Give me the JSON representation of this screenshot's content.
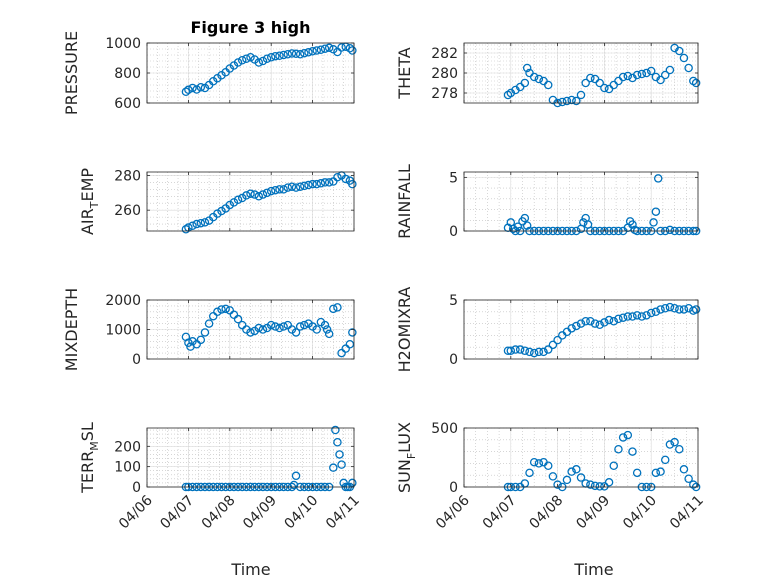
{
  "colors": {
    "marker": "#0072BD",
    "axis": "#262626"
  },
  "chart_data": [
    {
      "type": "scatter",
      "title": "Figure 3 high",
      "ylabel": "PRESSURE",
      "ylim": [
        600,
        1000
      ],
      "yticks": [
        "600",
        "800",
        "1000"
      ],
      "ytickvals": [
        600,
        800,
        1000
      ],
      "xlim": [
        0,
        5
      ],
      "xticks": [
        "04/06",
        "04/07",
        "04/08",
        "04/09",
        "04/10",
        "04/11"
      ],
      "show_xticks": false,
      "series": [
        {
          "x": [
            0.94,
            1.0,
            1.1,
            1.2,
            1.3,
            1.4,
            1.5,
            1.6,
            1.7,
            1.8,
            1.9,
            2.0,
            2.1,
            2.2,
            2.3,
            2.4,
            2.5,
            2.6,
            2.7,
            2.8,
            2.9,
            3.0,
            3.1,
            3.2,
            3.3,
            3.4,
            3.5,
            3.6,
            3.7,
            3.8,
            3.9,
            4.0,
            4.1,
            4.2,
            4.3,
            4.4,
            4.5,
            4.6,
            4.7,
            4.8,
            4.9,
            4.96
          ],
          "y": [
            675,
            688,
            700,
            690,
            705,
            700,
            720,
            745,
            765,
            785,
            805,
            830,
            850,
            870,
            885,
            895,
            905,
            890,
            870,
            880,
            895,
            905,
            912,
            915,
            920,
            925,
            930,
            928,
            925,
            932,
            938,
            945,
            950,
            955,
            962,
            968,
            958,
            940,
            970,
            975,
            965,
            950
          ]
        }
      ]
    },
    {
      "type": "scatter",
      "title": "",
      "ylabel": "THETA",
      "ylim": [
        277,
        283
      ],
      "yticks": [
        "278",
        "280",
        "282"
      ],
      "ytickvals": [
        278,
        280,
        282
      ],
      "xlim": [
        0,
        5
      ],
      "xticks": [
        "04/06",
        "04/07",
        "04/08",
        "04/09",
        "04/10",
        "04/11"
      ],
      "show_xticks": false,
      "series": [
        {
          "x": [
            0.94,
            1.0,
            1.1,
            1.2,
            1.3,
            1.35,
            1.4,
            1.5,
            1.6,
            1.7,
            1.8,
            1.9,
            2.0,
            2.1,
            2.2,
            2.3,
            2.4,
            2.5,
            2.6,
            2.7,
            2.8,
            2.9,
            3.0,
            3.1,
            3.2,
            3.3,
            3.4,
            3.5,
            3.6,
            3.7,
            3.8,
            3.9,
            4.0,
            4.1,
            4.2,
            4.3,
            4.4,
            4.5,
            4.6,
            4.7,
            4.8,
            4.9,
            4.96
          ],
          "y": [
            277.8,
            278.0,
            278.3,
            278.6,
            279.0,
            280.5,
            280.0,
            279.6,
            279.4,
            279.2,
            278.8,
            277.3,
            277.0,
            277.1,
            277.2,
            277.3,
            277.2,
            277.8,
            279.0,
            279.5,
            279.4,
            279.0,
            278.5,
            278.4,
            278.8,
            279.2,
            279.6,
            279.7,
            279.5,
            279.8,
            279.9,
            280.0,
            280.2,
            279.6,
            279.3,
            279.8,
            280.3,
            282.5,
            282.2,
            281.5,
            280.5,
            279.2,
            279.0
          ]
        }
      ]
    },
    {
      "type": "scatter",
      "title": "",
      "ylabel": "AIR_TEMP",
      "ylim": [
        248,
        282
      ],
      "yticks": [
        "260",
        "280"
      ],
      "ytickvals": [
        260,
        280
      ],
      "xlim": [
        0,
        5
      ],
      "xticks": [
        "04/06",
        "04/07",
        "04/08",
        "04/09",
        "04/10",
        "04/11"
      ],
      "show_xticks": false,
      "series": [
        {
          "x": [
            0.94,
            1.0,
            1.1,
            1.2,
            1.3,
            1.4,
            1.5,
            1.6,
            1.7,
            1.8,
            1.9,
            2.0,
            2.1,
            2.2,
            2.3,
            2.4,
            2.5,
            2.6,
            2.7,
            2.8,
            2.9,
            3.0,
            3.1,
            3.2,
            3.3,
            3.4,
            3.5,
            3.6,
            3.7,
            3.8,
            3.9,
            4.0,
            4.1,
            4.2,
            4.3,
            4.4,
            4.5,
            4.6,
            4.7,
            4.8,
            4.9,
            4.96
          ],
          "y": [
            249,
            250,
            251,
            252,
            252.5,
            253,
            254,
            256,
            258,
            259.5,
            261,
            263,
            264.5,
            266,
            267,
            268.5,
            269.5,
            269,
            268,
            269,
            270,
            271,
            271.5,
            272,
            272,
            273,
            273.5,
            273,
            273.5,
            274,
            274.5,
            275,
            275,
            275.5,
            276,
            276,
            276.5,
            279,
            280,
            278,
            277,
            275
          ]
        }
      ]
    },
    {
      "type": "scatter",
      "title": "",
      "ylabel": "RAINFALL",
      "ylim": [
        0,
        5.5
      ],
      "yticks": [
        "0",
        "5"
      ],
      "ytickvals": [
        0,
        5
      ],
      "xlim": [
        0,
        5
      ],
      "xticks": [
        "04/06",
        "04/07",
        "04/08",
        "04/09",
        "04/10",
        "04/11"
      ],
      "show_xticks": false,
      "series": [
        {
          "x": [
            0.94,
            1.0,
            1.05,
            1.1,
            1.15,
            1.2,
            1.25,
            1.3,
            1.35,
            1.4,
            1.5,
            1.6,
            1.7,
            1.8,
            1.9,
            2.0,
            2.1,
            2.2,
            2.3,
            2.4,
            2.5,
            2.55,
            2.6,
            2.65,
            2.7,
            2.8,
            2.9,
            3.0,
            3.1,
            3.2,
            3.3,
            3.4,
            3.5,
            3.55,
            3.6,
            3.65,
            3.7,
            3.8,
            3.9,
            4.0,
            4.05,
            4.1,
            4.15,
            4.2,
            4.3,
            4.4,
            4.5,
            4.6,
            4.7,
            4.8,
            4.9,
            4.96
          ],
          "y": [
            0.3,
            0.8,
            0.2,
            0.0,
            0.4,
            0.0,
            0.9,
            1.2,
            0.5,
            0.0,
            0.0,
            0.0,
            0.0,
            0.0,
            0.0,
            0.0,
            0.0,
            0.0,
            0.0,
            0.0,
            0.2,
            0.8,
            1.2,
            0.6,
            0.0,
            0.0,
            0.0,
            0.0,
            0.0,
            0.0,
            0.0,
            0.0,
            0.3,
            0.9,
            0.6,
            0.1,
            0.0,
            0.0,
            0.0,
            0.0,
            0.8,
            1.8,
            4.9,
            0.0,
            0.0,
            0.1,
            0.0,
            0.0,
            0.0,
            0.0,
            0.0,
            0.0
          ]
        }
      ]
    },
    {
      "type": "scatter",
      "title": "",
      "ylabel": "MIXDEPTH",
      "ylim": [
        0,
        2000
      ],
      "yticks": [
        "0",
        "1000",
        "2000"
      ],
      "ytickvals": [
        0,
        1000,
        2000
      ],
      "xlim": [
        0,
        5
      ],
      "xticks": [
        "04/06",
        "04/07",
        "04/08",
        "04/09",
        "04/10",
        "04/11"
      ],
      "show_xticks": false,
      "series": [
        {
          "x": [
            0.94,
            1.0,
            1.05,
            1.1,
            1.2,
            1.3,
            1.4,
            1.5,
            1.6,
            1.7,
            1.8,
            1.9,
            2.0,
            2.1,
            2.2,
            2.3,
            2.4,
            2.5,
            2.6,
            2.7,
            2.8,
            2.9,
            3.0,
            3.1,
            3.2,
            3.3,
            3.4,
            3.5,
            3.6,
            3.7,
            3.8,
            3.9,
            4.0,
            4.1,
            4.2,
            4.3,
            4.35,
            4.4,
            4.5,
            4.6,
            4.7,
            4.8,
            4.9,
            4.96
          ],
          "y": [
            750,
            550,
            420,
            600,
            500,
            650,
            900,
            1200,
            1450,
            1600,
            1680,
            1700,
            1650,
            1500,
            1350,
            1150,
            1000,
            900,
            950,
            1050,
            1000,
            1050,
            1150,
            1100,
            1050,
            1100,
            1150,
            1000,
            900,
            1100,
            1150,
            1200,
            1100,
            1000,
            1250,
            1150,
            1000,
            850,
            1700,
            1750,
            200,
            350,
            500,
            900
          ]
        }
      ]
    },
    {
      "type": "scatter",
      "title": "",
      "ylabel": "H2OMIXRA",
      "ylim": [
        0,
        5
      ],
      "yticks": [
        "0",
        "5"
      ],
      "ytickvals": [
        0,
        5
      ],
      "xlim": [
        0,
        5
      ],
      "xticks": [
        "04/06",
        "04/07",
        "04/08",
        "04/09",
        "04/10",
        "04/11"
      ],
      "show_xticks": false,
      "series": [
        {
          "x": [
            0.94,
            1.0,
            1.1,
            1.2,
            1.3,
            1.4,
            1.5,
            1.6,
            1.7,
            1.8,
            1.9,
            2.0,
            2.1,
            2.2,
            2.3,
            2.4,
            2.5,
            2.6,
            2.7,
            2.8,
            2.9,
            3.0,
            3.1,
            3.2,
            3.3,
            3.4,
            3.5,
            3.6,
            3.7,
            3.8,
            3.9,
            4.0,
            4.1,
            4.2,
            4.3,
            4.4,
            4.5,
            4.6,
            4.7,
            4.8,
            4.9,
            4.96
          ],
          "y": [
            0.7,
            0.7,
            0.8,
            0.8,
            0.7,
            0.6,
            0.5,
            0.6,
            0.6,
            0.8,
            1.2,
            1.6,
            2.0,
            2.3,
            2.6,
            2.8,
            3.0,
            3.2,
            3.2,
            3.0,
            2.9,
            3.1,
            3.3,
            3.2,
            3.4,
            3.5,
            3.6,
            3.6,
            3.7,
            3.6,
            3.7,
            3.9,
            4.0,
            4.2,
            4.3,
            4.4,
            4.3,
            4.2,
            4.2,
            4.3,
            4.1,
            4.2
          ]
        }
      ]
    },
    {
      "type": "scatter",
      "title": "",
      "ylabel": "TERR_MSL",
      "ylim": [
        0,
        290
      ],
      "yticks": [
        "0",
        "100",
        "200"
      ],
      "ytickvals": [
        0,
        100,
        200
      ],
      "xlim": [
        0,
        5
      ],
      "xticks": [
        "04/06",
        "04/07",
        "04/08",
        "04/09",
        "04/10",
        "04/11"
      ],
      "show_xticks": true,
      "series": [
        {
          "x": [
            0.94,
            1.0,
            1.1,
            1.2,
            1.3,
            1.4,
            1.5,
            1.6,
            1.7,
            1.8,
            1.9,
            2.0,
            2.1,
            2.2,
            2.3,
            2.4,
            2.5,
            2.6,
            2.7,
            2.8,
            2.9,
            3.0,
            3.1,
            3.2,
            3.3,
            3.4,
            3.5,
            3.55,
            3.6,
            3.7,
            3.8,
            3.9,
            4.0,
            4.1,
            4.2,
            4.3,
            4.4,
            4.5,
            4.55,
            4.6,
            4.65,
            4.7,
            4.75,
            4.8,
            4.85,
            4.9,
            4.96
          ],
          "y": [
            0,
            0,
            0,
            0,
            0,
            0,
            0,
            0,
            0,
            0,
            0,
            0,
            0,
            0,
            0,
            0,
            0,
            0,
            0,
            0,
            0,
            0,
            0,
            0,
            0,
            0,
            0,
            10,
            55,
            0,
            0,
            0,
            0,
            0,
            0,
            0,
            0,
            95,
            280,
            220,
            160,
            110,
            20,
            0,
            0,
            0,
            20
          ]
        }
      ]
    },
    {
      "type": "scatter",
      "title": "",
      "ylabel": "SUN_FLUX",
      "ylim": [
        0,
        500
      ],
      "yticks": [
        "0",
        "500"
      ],
      "ytickvals": [
        0,
        500
      ],
      "xlim": [
        0,
        5
      ],
      "xticks": [
        "04/06",
        "04/07",
        "04/08",
        "04/09",
        "04/10",
        "04/11"
      ],
      "show_xticks": true,
      "series": [
        {
          "x": [
            0.94,
            1.0,
            1.1,
            1.2,
            1.3,
            1.4,
            1.5,
            1.6,
            1.7,
            1.8,
            1.9,
            2.0,
            2.1,
            2.2,
            2.3,
            2.4,
            2.5,
            2.6,
            2.7,
            2.8,
            2.9,
            3.0,
            3.1,
            3.2,
            3.3,
            3.4,
            3.5,
            3.6,
            3.7,
            3.8,
            3.9,
            4.0,
            4.1,
            4.2,
            4.3,
            4.4,
            4.5,
            4.6,
            4.7,
            4.8,
            4.9,
            4.96
          ],
          "y": [
            0,
            0,
            0,
            0,
            30,
            120,
            210,
            200,
            210,
            180,
            90,
            20,
            0,
            60,
            130,
            150,
            80,
            30,
            20,
            10,
            5,
            5,
            40,
            180,
            320,
            420,
            440,
            300,
            120,
            0,
            0,
            0,
            120,
            130,
            230,
            360,
            380,
            320,
            150,
            70,
            20,
            0
          ]
        }
      ]
    }
  ],
  "xlabel_left": "Time",
  "xlabel_right": "Time"
}
